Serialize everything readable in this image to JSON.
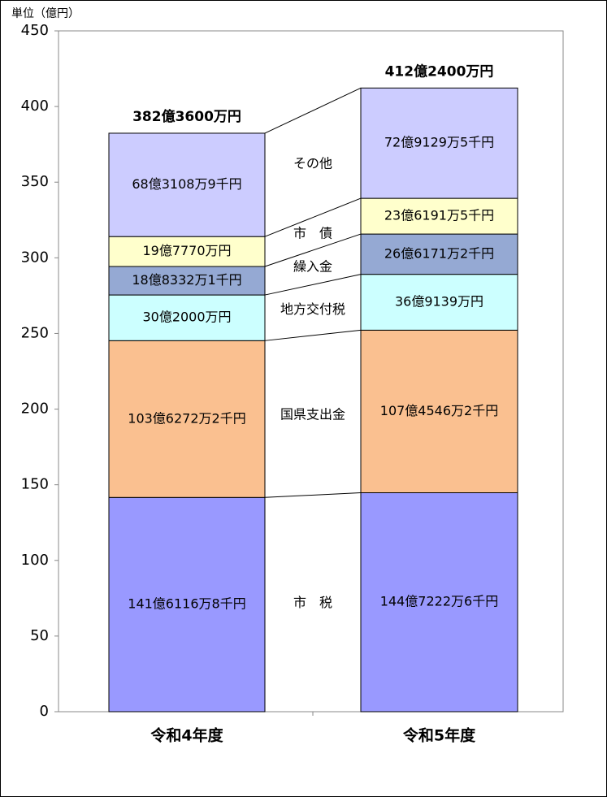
{
  "chart_data": {
    "type": "stacked-bar",
    "y_axis_label": "単位（億円）",
    "categories": [
      "令和4年度",
      "令和5年度"
    ],
    "ylim": [
      0,
      450
    ],
    "yticks": [
      0,
      50,
      100,
      150,
      200,
      250,
      300,
      350,
      400,
      450
    ],
    "series": [
      {
        "name": "市　税",
        "color": "#9999ff",
        "values": [
          141.61168,
          144.72226
        ],
        "value_labels": [
          "141億6116万8千円",
          "144億7222万6千円"
        ]
      },
      {
        "name": "国県支出金",
        "color": "#fac090",
        "values": [
          103.62722,
          107.45462
        ],
        "value_labels": [
          "103億6272万2千円",
          "107億4546万2千円"
        ]
      },
      {
        "name": "地方交付税",
        "color": "#ccffff",
        "values": [
          30.2,
          36.9139
        ],
        "value_labels": [
          "30億2000万円",
          "36億9139万円"
        ]
      },
      {
        "name": "繰入金",
        "color": "#95a9d3",
        "values": [
          18.83321,
          26.61712
        ],
        "value_labels": [
          "18億8332万1千円",
          "26億6171万2千円"
        ]
      },
      {
        "name": "市　債",
        "color": "#ffffcc",
        "values": [
          19.777,
          23.61915
        ],
        "value_labels": [
          "19億7770万円",
          "23億6191万5千円"
        ]
      },
      {
        "name": "その他",
        "color": "#ccccff",
        "values": [
          68.31089,
          72.91295
        ],
        "value_labels": [
          "68億3108万9千円",
          "72億9129万5千円"
        ]
      }
    ],
    "totals": [
      382.36,
      412.24
    ],
    "total_labels": [
      "382億3600万円",
      "412億2400万円"
    ]
  }
}
